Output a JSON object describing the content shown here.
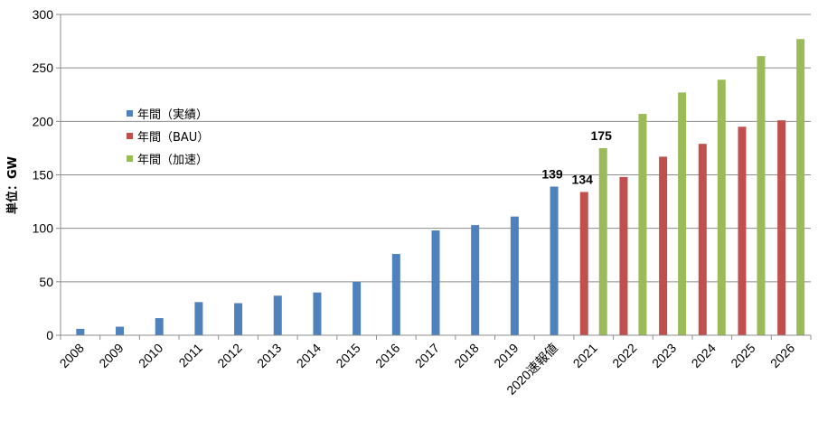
{
  "chart_data": {
    "type": "bar",
    "ylabel": "単位：GW",
    "ylim": [
      0,
      300
    ],
    "yticks": [
      0,
      50,
      100,
      150,
      200,
      250,
      300
    ],
    "grid": true,
    "legend_position": "left",
    "categories": [
      "2008",
      "2009",
      "2010",
      "2011",
      "2012",
      "2013",
      "2014",
      "2015",
      "2016",
      "2017",
      "2018",
      "2019",
      "2020速報値",
      "2021",
      "2022",
      "2023",
      "2024",
      "2025",
      "2026"
    ],
    "series": [
      {
        "name": "年間（実績）",
        "color": "#4f81bd",
        "values": [
          6,
          8,
          16,
          31,
          30,
          37,
          40,
          50,
          76,
          98,
          103,
          111,
          139,
          null,
          null,
          null,
          null,
          null,
          null
        ]
      },
      {
        "name": "年間（BAU）",
        "color": "#c0504d",
        "values": [
          null,
          null,
          null,
          null,
          null,
          null,
          null,
          null,
          null,
          null,
          null,
          null,
          null,
          134,
          148,
          167,
          179,
          195,
          201
        ]
      },
      {
        "name": "年間（加速）",
        "color": "#9bbb59",
        "values": [
          null,
          null,
          null,
          null,
          null,
          null,
          null,
          null,
          null,
          null,
          null,
          null,
          null,
          175,
          207,
          227,
          239,
          261,
          277
        ]
      }
    ],
    "data_labels": [
      {
        "category": "2020速報値",
        "series": 0,
        "text": "139"
      },
      {
        "category": "2021",
        "series": 1,
        "text": "134"
      },
      {
        "category": "2021",
        "series": 2,
        "text": "175"
      }
    ]
  }
}
